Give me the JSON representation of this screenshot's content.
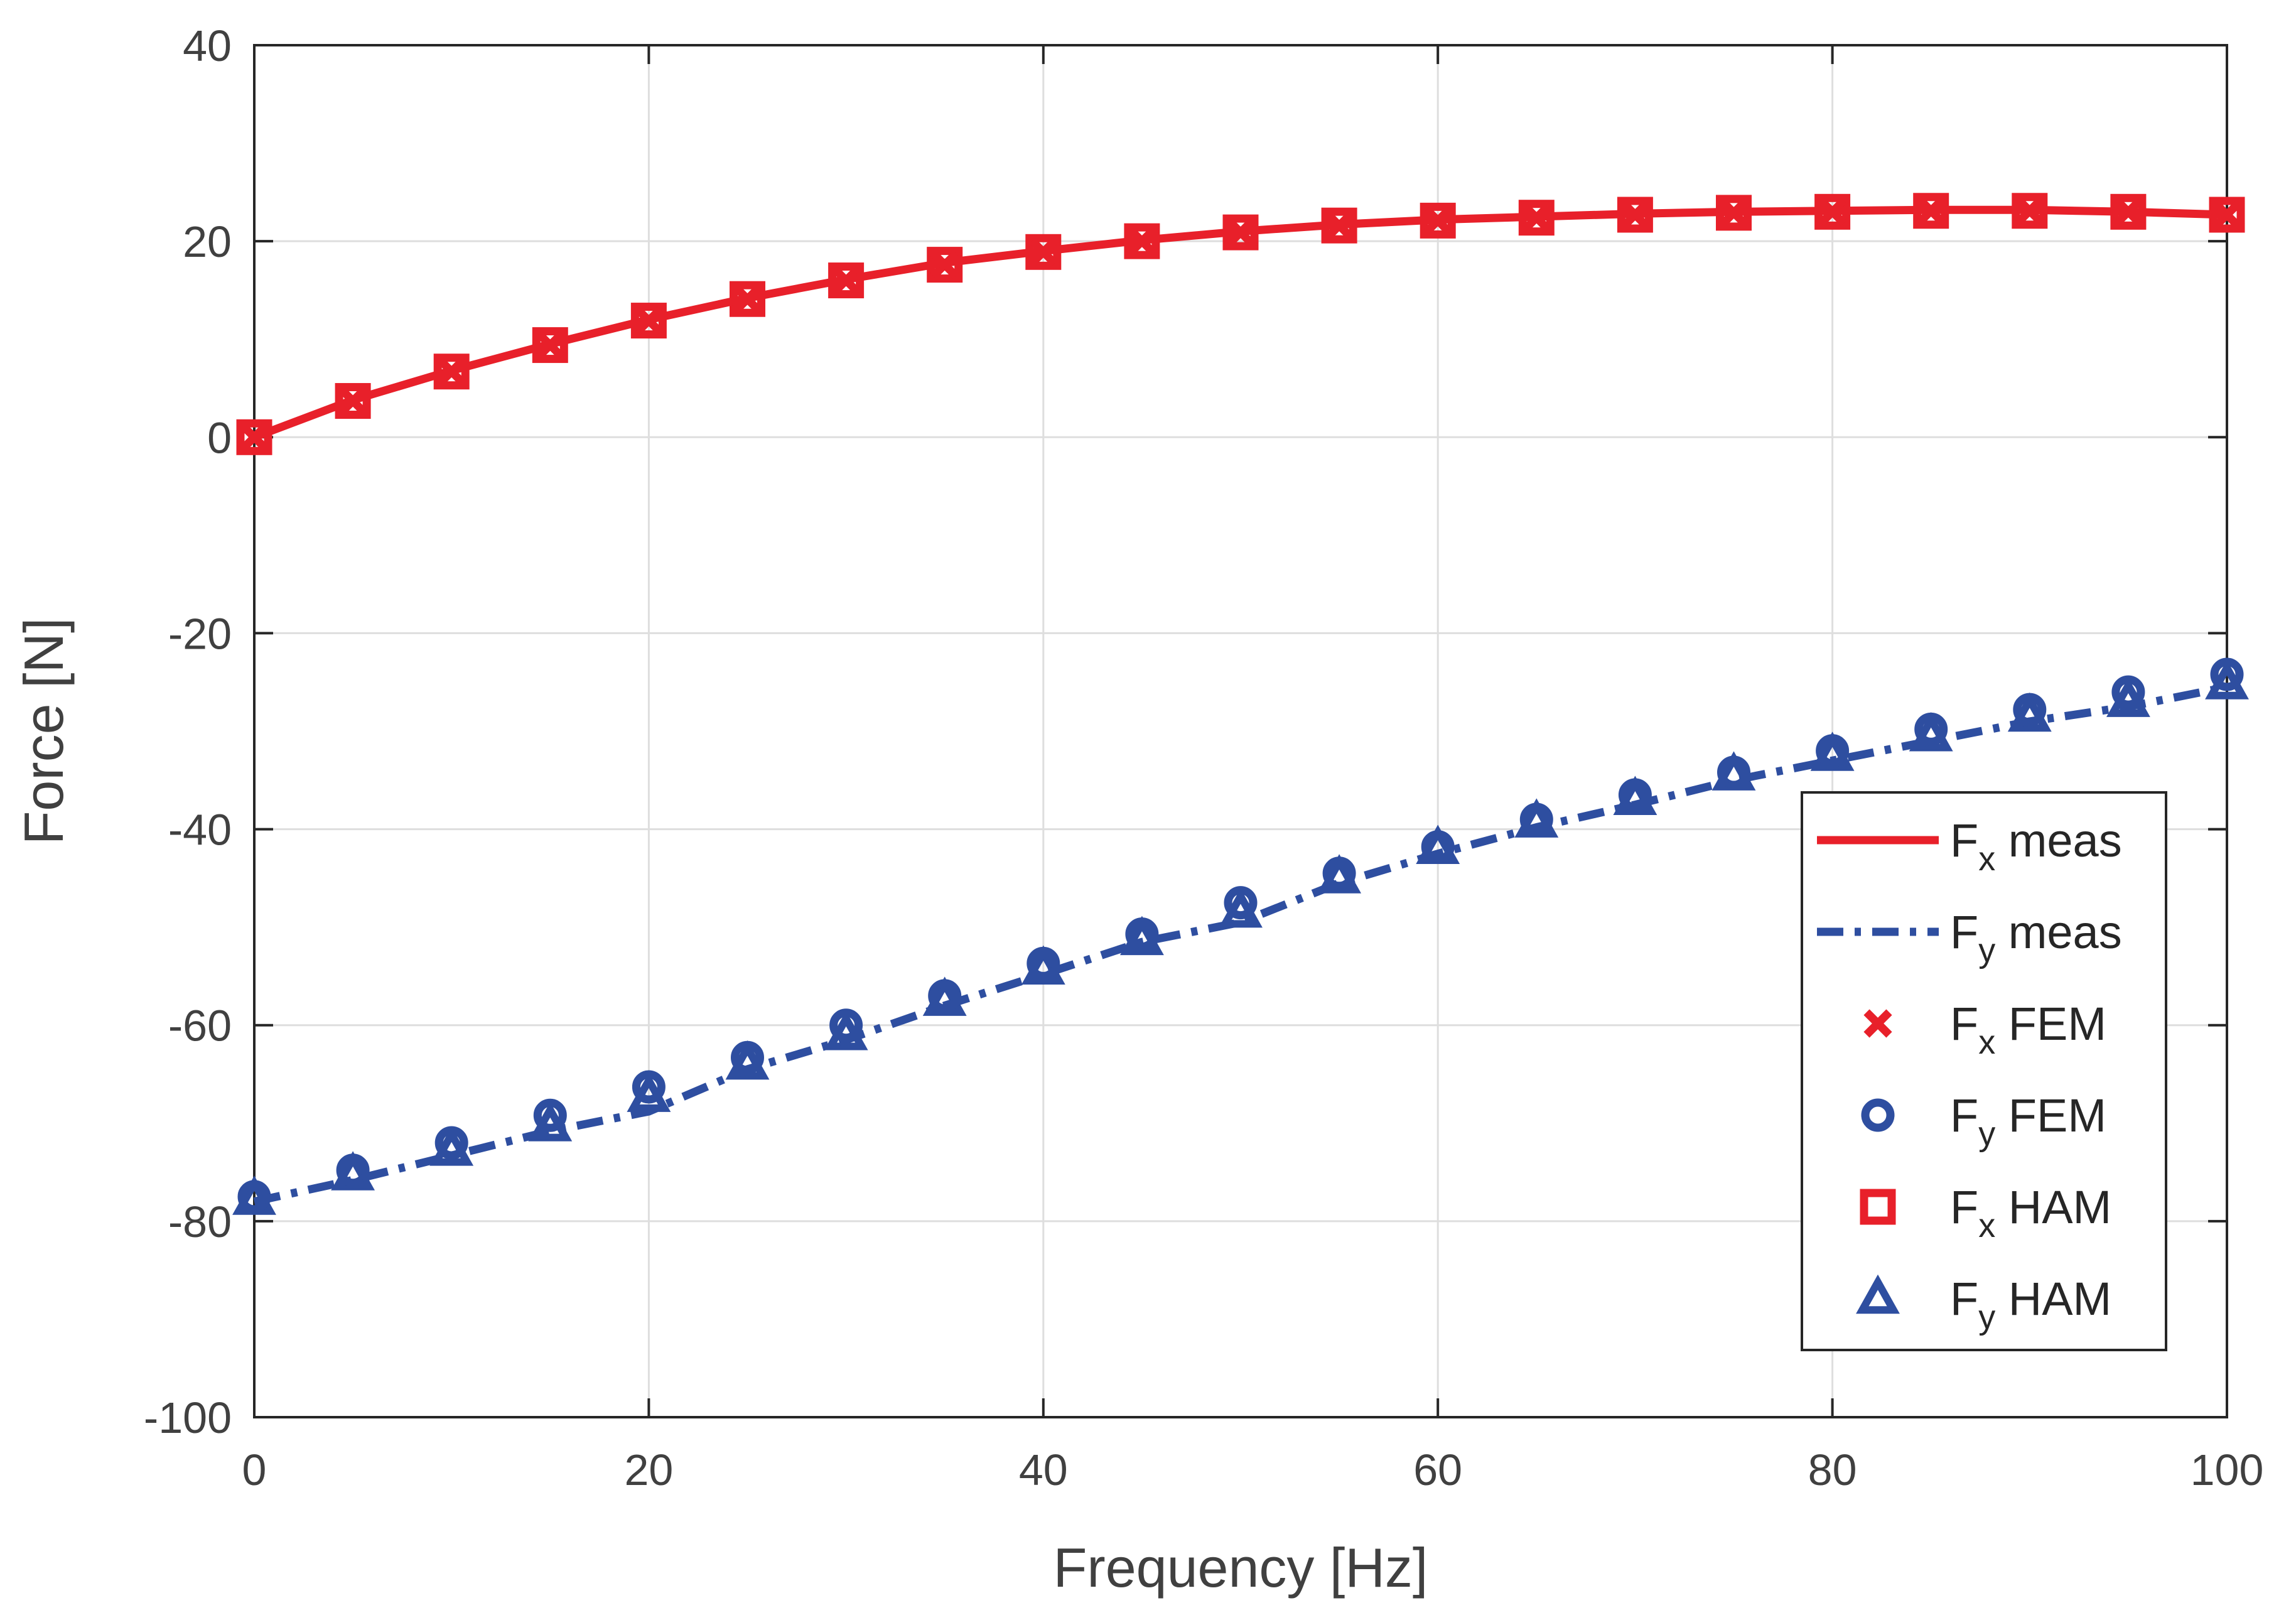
{
  "chart_data": {
    "type": "line",
    "title": "",
    "xlabel": "Frequency [Hz]",
    "ylabel": "Force [N]",
    "xlim": [
      0,
      100
    ],
    "ylim": [
      -100,
      40
    ],
    "xticks": [
      0,
      20,
      40,
      60,
      80,
      100
    ],
    "yticks": [
      -100,
      -80,
      -60,
      -40,
      -20,
      0,
      20,
      40
    ],
    "grid": true,
    "legend_position": "bottom-right",
    "x": [
      0,
      5,
      10,
      15,
      20,
      25,
      30,
      35,
      40,
      45,
      50,
      55,
      60,
      65,
      70,
      75,
      80,
      85,
      90,
      95,
      100
    ],
    "series": [
      {
        "key": "fx_meas",
        "name": "F",
        "sub": "x",
        "suffix": " meas",
        "kind": "line",
        "dash": "solid",
        "color": "#e8202a",
        "values": [
          0,
          3.8,
          6.8,
          9.5,
          12.0,
          14.2,
          16.1,
          17.8,
          19.0,
          20.1,
          21.0,
          21.7,
          22.2,
          22.5,
          22.8,
          23.0,
          23.1,
          23.2,
          23.2,
          23.0,
          22.7
        ]
      },
      {
        "key": "fy_meas",
        "name": "F",
        "sub": "y",
        "suffix": " meas",
        "kind": "line",
        "dash": "dashdot",
        "color": "#2e4ea0",
        "values": [
          -78.0,
          -75.8,
          -73.3,
          -70.8,
          -68.8,
          -64.5,
          -61.5,
          -58.0,
          -54.8,
          -51.5,
          -49.5,
          -45.5,
          -42.5,
          -39.8,
          -37.5,
          -35.0,
          -33.0,
          -31.0,
          -29.0,
          -27.5,
          -25.5
        ]
      },
      {
        "key": "fx_fem",
        "name": "F",
        "sub": "x",
        "suffix": " FEM",
        "kind": "marker",
        "marker": "x",
        "color": "#e8202a",
        "values": [
          0,
          3.7,
          6.7,
          9.4,
          11.9,
          14.1,
          16.0,
          17.6,
          18.9,
          20.0,
          20.9,
          21.6,
          22.1,
          22.4,
          22.7,
          22.9,
          23.0,
          23.1,
          23.1,
          23.0,
          22.7
        ]
      },
      {
        "key": "fy_fem",
        "name": "F",
        "sub": "y",
        "suffix": " FEM",
        "kind": "marker",
        "marker": "circle",
        "color": "#2e4ea0",
        "values": [
          -77.5,
          -74.8,
          -72.0,
          -69.2,
          -66.3,
          -63.3,
          -60.0,
          -57.0,
          -53.7,
          -50.7,
          -47.5,
          -44.5,
          -41.8,
          -39.0,
          -36.5,
          -34.2,
          -32.0,
          -29.8,
          -27.8,
          -26.0,
          -24.2
        ]
      },
      {
        "key": "fx_ham",
        "name": "F",
        "sub": "x",
        "suffix": " HAM",
        "kind": "marker",
        "marker": "square",
        "color": "#e8202a",
        "values": [
          0,
          3.7,
          6.7,
          9.4,
          11.9,
          14.1,
          16.0,
          17.6,
          18.9,
          20.0,
          20.9,
          21.6,
          22.1,
          22.4,
          22.7,
          22.9,
          23.0,
          23.1,
          23.1,
          23.0,
          22.7
        ]
      },
      {
        "key": "fy_ham",
        "name": "F",
        "sub": "y",
        "suffix": " HAM",
        "kind": "marker",
        "marker": "triangle",
        "color": "#2e4ea0",
        "values": [
          -77.8,
          -75.3,
          -72.8,
          -70.3,
          -67.3,
          -64.0,
          -61.0,
          -57.5,
          -54.3,
          -51.3,
          -48.5,
          -45.0,
          -42.0,
          -39.3,
          -37.0,
          -34.5,
          -32.5,
          -30.5,
          -28.5,
          -27.0,
          -25.2
        ]
      }
    ]
  }
}
